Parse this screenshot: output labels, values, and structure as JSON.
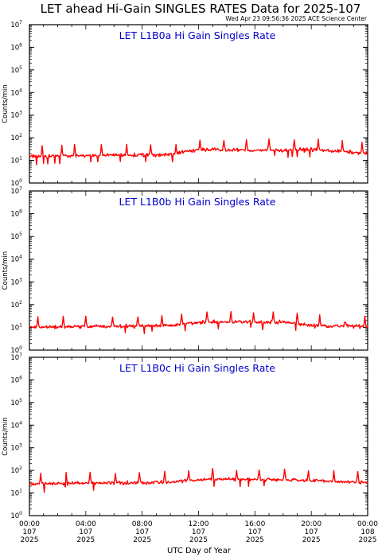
{
  "page": {
    "title": "LET ahead Hi-Gain SINGLES RATES Data for 2025-107",
    "timestamp": "Wed Apr 23 09:56:36 2025 ACE Science Center",
    "xlabel": "UTC Day of Year"
  },
  "chart_data": [
    {
      "type": "line",
      "title": "LET L1B0a Hi Gain Singles Rate",
      "ylabel": "Counts/min",
      "yscale": "log",
      "ylim": [
        1,
        10000000
      ],
      "line_color": "#ff0000",
      "title_color": "#0000cc",
      "series": [
        {
          "values": []
        }
      ],
      "baseline": 17,
      "drift": [
        [
          0,
          15
        ],
        [
          10,
          18
        ],
        [
          12,
          30
        ],
        [
          16,
          28
        ],
        [
          20,
          30
        ],
        [
          24,
          20
        ]
      ],
      "spikes_hours": [
        0.9,
        2.3,
        3.2,
        5.1,
        6.9,
        8.6,
        10.4,
        12.1,
        13.8,
        15.4,
        17.0,
        18.8,
        20.5,
        22.2,
        23.6
      ]
    },
    {
      "type": "line",
      "title": "LET L1B0b Hi Gain Singles Rate",
      "ylabel": "Counts/min",
      "yscale": "log",
      "ylim": [
        1,
        10000000
      ],
      "line_color": "#ff0000",
      "title_color": "#0000cc",
      "series": [
        {
          "values": []
        }
      ],
      "baseline": 11,
      "drift": [
        [
          0,
          10
        ],
        [
          10,
          12
        ],
        [
          12,
          17
        ],
        [
          18,
          17
        ],
        [
          20,
          12
        ],
        [
          24,
          11
        ]
      ],
      "spikes_hours": [
        0.6,
        2.4,
        4.0,
        5.9,
        7.7,
        9.4,
        10.8,
        12.6,
        14.3,
        15.9,
        17.3,
        19.0,
        20.6,
        22.4,
        23.8
      ]
    },
    {
      "type": "line",
      "title": "LET L1B0c Hi Gain Singles Rate",
      "ylabel": "Counts/min",
      "yscale": "log",
      "ylim": [
        1,
        10000000
      ],
      "line_color": "#ff0000",
      "title_color": "#0000cc",
      "series": [
        {
          "values": []
        }
      ],
      "baseline": 27,
      "drift": [
        [
          0,
          25
        ],
        [
          10,
          30
        ],
        [
          12,
          40
        ],
        [
          18,
          40
        ],
        [
          20,
          35
        ],
        [
          24,
          28
        ]
      ],
      "spikes_hours": [
        0.8,
        2.6,
        4.3,
        6.1,
        7.8,
        9.6,
        11.3,
        13.0,
        14.7,
        16.3,
        18.1,
        19.8,
        21.6,
        23.3
      ]
    }
  ],
  "x_axis": {
    "hours": [
      0,
      4,
      8,
      12,
      16,
      20,
      24
    ],
    "ticklabels": [
      [
        "00:00",
        "107",
        "2025"
      ],
      [
        "04:00",
        "107",
        "2025"
      ],
      [
        "08:00",
        "107",
        "2025"
      ],
      [
        "12:00",
        "107",
        "2025"
      ],
      [
        "16:00",
        "107",
        "2025"
      ],
      [
        "20:00",
        "107",
        "2025"
      ],
      [
        "00:00",
        "108",
        "2025"
      ]
    ]
  },
  "y_axis": {
    "exponents": [
      "0",
      "1",
      "2",
      "3",
      "4",
      "5",
      "6",
      "7"
    ],
    "base": "10"
  }
}
